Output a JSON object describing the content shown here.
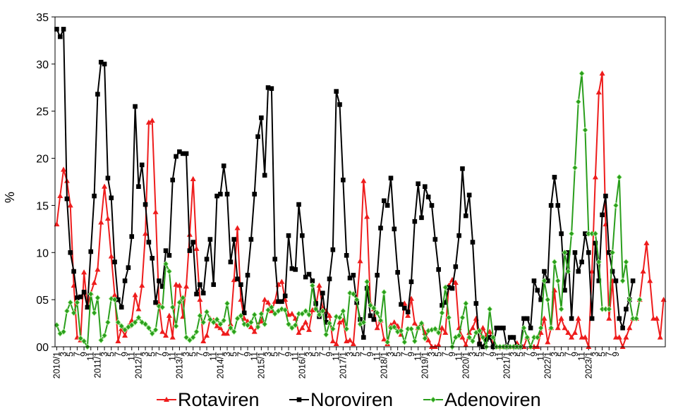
{
  "chart_data": {
    "type": "line",
    "ylabel": "%",
    "ylim": [
      0,
      35
    ],
    "y_ticks": [
      "00",
      "05",
      "10",
      "15",
      "20",
      "25",
      "30",
      "35"
    ],
    "grid": false,
    "legend_position": "bottom",
    "x_tick_labels": [
      "2010/1",
      "3",
      "5",
      "7",
      "9",
      "11",
      "2011/1",
      "3",
      "5",
      "7",
      "9",
      "11",
      "2012/1",
      "3",
      "5",
      "7",
      "9",
      "11",
      "2013/1",
      "3",
      "5",
      "7",
      "9",
      "11",
      "2014/1",
      "3",
      "5",
      "7",
      "9",
      "11",
      "2015/1",
      "3",
      "5",
      "7",
      "9",
      "11",
      "2016/1",
      "3",
      "5",
      "7",
      "9",
      "11",
      "2017/1",
      "3",
      "5",
      "7",
      "9",
      "11",
      "2018/1",
      "3",
      "5",
      "7",
      "9",
      "11",
      "2019/1",
      "3",
      "5",
      "7",
      "9",
      "11",
      "2020/1",
      "3",
      "5",
      "7",
      "9",
      "11",
      "2021/1",
      "3",
      "5",
      "7",
      "9",
      "11",
      "2022/1",
      "3",
      "5",
      "7",
      "9",
      "11",
      "2023/1",
      "3",
      "5",
      "7",
      "9"
    ],
    "series": [
      {
        "name": "Rotaviren",
        "color": "#ee1c1c",
        "marker": "triangle",
        "values": [
          13,
          16,
          18.8,
          17.6,
          15,
          6.5,
          1,
          0.7,
          7.9,
          4.2,
          5.7,
          6.8,
          8.2,
          13.2,
          17,
          13.6,
          9.6,
          5.5,
          0.6,
          1.9,
          1.2,
          2.2,
          2.8,
          5.5,
          4,
          6.5,
          12,
          23.8,
          24,
          14.3,
          4.6,
          1.6,
          1.2,
          3.3,
          1,
          6.6,
          6.5,
          3.2,
          6.4,
          11.9,
          17.8,
          10.4,
          5,
          0.6,
          1.2,
          3,
          2.8,
          2.2,
          2,
          1.4,
          1.4,
          2.4,
          7.1,
          12.6,
          5,
          3,
          2.7,
          2.1,
          1.6,
          2.3,
          2.7,
          5,
          4.7,
          3.8,
          4.8,
          6.6,
          6.9,
          5,
          3.4,
          3.5,
          3,
          1.5,
          2,
          2.6,
          1.8,
          3.9,
          4.2,
          6.5,
          4.1,
          3.8,
          3.3,
          0.6,
          0.3,
          2.6,
          2.8,
          0.6,
          0.7,
          0.3,
          4.7,
          9.1,
          17.6,
          13.8,
          4.6,
          4,
          2,
          2.8,
          0.8,
          0.3,
          2.3,
          2.6,
          2.2,
          1.3,
          4.6,
          3.3,
          5.1,
          2.5,
          2,
          2.5,
          1.5,
          0.7,
          0,
          0,
          0.2,
          2,
          1.5,
          6.5,
          7.1,
          6.8,
          2,
          1,
          0.2,
          1.5,
          2,
          3,
          0.5,
          2,
          1.2,
          1.6,
          0.2,
          0,
          0,
          0,
          0,
          0,
          0,
          0.4,
          0,
          0,
          1,
          0,
          0,
          0,
          1.5,
          3,
          0.5,
          2,
          6,
          2,
          3,
          2,
          1.5,
          1,
          1.5,
          3,
          1,
          1,
          0,
          8,
          18,
          27,
          29,
          13,
          3,
          7,
          1,
          1,
          0,
          1,
          2,
          3,
          3,
          5,
          8,
          11,
          7,
          3,
          3,
          1,
          5
        ]
      },
      {
        "name": "Noroviren",
        "color": "#000000",
        "marker": "square",
        "values": [
          33.7,
          32.9,
          33.7,
          15.7,
          10,
          8,
          5.2,
          5.3,
          5.8,
          4.2,
          10.1,
          16,
          26.8,
          30.2,
          30,
          17.9,
          15.8,
          9,
          5,
          4.2,
          7,
          8.4,
          11.7,
          25.5,
          17,
          19.3,
          15.1,
          11.1,
          9.4,
          4.7,
          7,
          6.4,
          10.2,
          9.7,
          17.7,
          20.2,
          20.7,
          20.5,
          20.5,
          10.2,
          11.1,
          5.6,
          6.6,
          5.7,
          9.3,
          11.4,
          6.6,
          16,
          16.2,
          19.2,
          16.2,
          9,
          11.4,
          7.2,
          6.6,
          3.6,
          7.6,
          11.4,
          16.2,
          22.3,
          24.3,
          18.2,
          27.5,
          27.4,
          9.3,
          4.8,
          4.8,
          5.4,
          11.8,
          8.3,
          8.2,
          15.1,
          11.8,
          7.4,
          7.7,
          7,
          4.6,
          3.2,
          5.7,
          2.6,
          7.2,
          10.3,
          27.1,
          25.7,
          17.7,
          9.7,
          7.3,
          7.6,
          4.7,
          2.9,
          1,
          6.2,
          3.3,
          2.9,
          7.6,
          12.6,
          15.5,
          15,
          17.9,
          12.5,
          7.9,
          4.5,
          4.1,
          3.7,
          6.9,
          13.3,
          17.3,
          13.7,
          17,
          15.9,
          15,
          11.4,
          8.2,
          4.4,
          4.7,
          6.3,
          6.2,
          8.5,
          11.8,
          18.9,
          13.9,
          16.1,
          11.1,
          4.6,
          0.3,
          0,
          0.8,
          1,
          0,
          2,
          2,
          2,
          0,
          1,
          1,
          0,
          0,
          3,
          3,
          2,
          7,
          6,
          5,
          8,
          7,
          15,
          18,
          15,
          12,
          6,
          10,
          3,
          10,
          8,
          9,
          12,
          10,
          3,
          11,
          7,
          14,
          16,
          10,
          8,
          7,
          3,
          2,
          4,
          5,
          7
        ]
      },
      {
        "name": "Adenoviren",
        "color": "#2a9e1c",
        "marker": "diamond",
        "values": [
          2.3,
          1.4,
          1.6,
          3.8,
          4.7,
          3.6,
          4.7,
          0.9,
          0.6,
          0,
          5.6,
          3.6,
          5.2,
          0.7,
          1.2,
          2.6,
          5.1,
          5,
          2.6,
          2.2,
          1.8,
          2.1,
          2.3,
          2.6,
          3.1,
          2.6,
          2.4,
          2,
          1.4,
          1.8,
          4.3,
          4.2,
          8.8,
          8,
          4.2,
          2.2,
          4.7,
          5.2,
          1,
          0.7,
          1,
          1.6,
          3.3,
          2.6,
          3.7,
          2.9,
          2.6,
          2.9,
          2.4,
          2.8,
          4.6,
          2,
          1.6,
          3,
          3.3,
          2.4,
          2.3,
          2.6,
          3.4,
          2.1,
          3.5,
          2.4,
          3.9,
          4.2,
          3.5,
          3.8,
          4,
          3.9,
          2.4,
          2,
          2.3,
          3.5,
          3.5,
          3.8,
          3.4,
          6.5,
          4,
          3.4,
          3.8,
          1.3,
          2.5,
          1.9,
          3.2,
          3.1,
          3.8,
          1.9,
          5.7,
          5.6,
          5,
          2.4,
          2.6,
          6.9,
          4.4,
          4.1,
          3.6,
          2.8,
          5.8,
          0.5,
          2,
          2.1,
          1.6,
          1.7,
          0.5,
          1.9,
          1.9,
          0.6,
          2,
          2.5,
          0.9,
          1.7,
          1.8,
          1.9,
          1.5,
          3.6,
          6.3,
          3.1,
          0,
          1,
          1.2,
          3.1,
          4.6,
          1,
          0.6,
          1.5,
          1.7,
          1,
          0,
          4,
          1,
          0,
          0,
          0,
          0,
          0,
          0,
          0,
          0,
          2,
          1,
          0,
          1,
          1,
          2,
          7,
          5,
          2,
          9,
          7,
          4,
          10,
          8,
          12,
          19,
          26,
          29,
          23,
          12,
          12,
          12,
          9,
          4,
          4,
          4,
          10,
          15,
          18,
          7,
          9,
          5,
          3,
          3,
          5
        ]
      }
    ]
  }
}
